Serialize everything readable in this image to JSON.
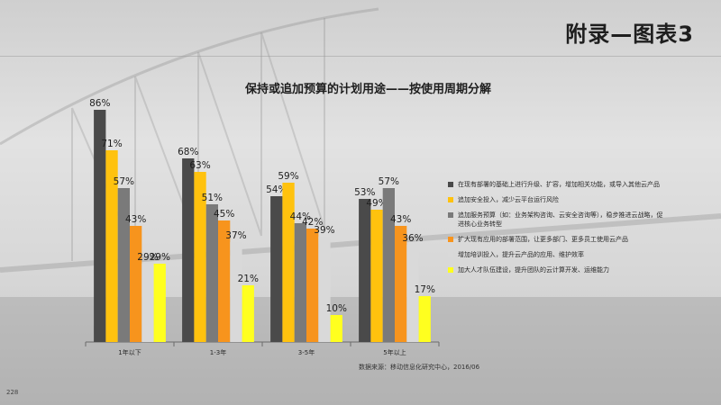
{
  "page_title": "附录—图表3",
  "page_number": "228",
  "source": "数据来源：移动信息化研究中心，2016/06",
  "chart_data": {
    "type": "bar",
    "title": "保持或追加预算的计划用途——按使用周期分解",
    "categories": [
      "1年以下",
      "1-3年",
      "3-5年",
      "5年以上"
    ],
    "ylim": [
      0,
      90
    ],
    "value_suffix": "%",
    "grid": false,
    "legend_position": "right",
    "series": [
      {
        "name": "在现有部署的基础上进行升级、扩容，增加相关功能，或导入其他云产品",
        "color": "#4a4a4a",
        "values": [
          86,
          68,
          54,
          53
        ]
      },
      {
        "name": "追加安全投入，减少云平台运行风险",
        "color": "#ffc20e",
        "values": [
          71,
          63,
          59,
          49
        ]
      },
      {
        "name": "追加服务预算（如：业务架构咨询、云安全咨询等），稳步推进云战略，促进核心业务转型",
        "color": "#7a7a7a",
        "values": [
          57,
          51,
          44,
          57
        ]
      },
      {
        "name": "扩大现有应用的部署范围，让更多部门、更多员工使用云产品",
        "color": "#f7941d",
        "values": [
          43,
          45,
          42,
          43
        ]
      },
      {
        "name": "增加培训投入，提升云产品的应用、维护效率",
        "color": "#d9d9d9",
        "values": [
          29,
          37,
          39,
          36
        ]
      },
      {
        "name": "加大人才队伍建设，提升团队的云计算开发、运维能力",
        "color": "#ffff1f",
        "values": [
          29,
          21,
          10,
          17
        ]
      }
    ]
  }
}
